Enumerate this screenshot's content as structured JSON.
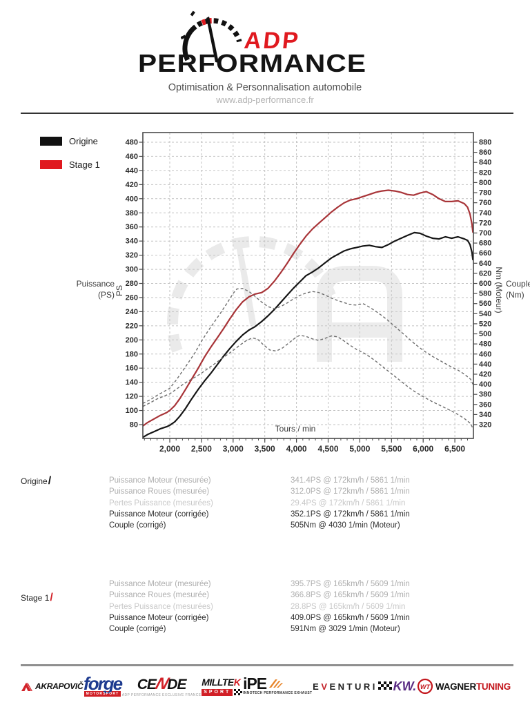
{
  "header": {
    "brand_top": "ADP",
    "brand_bottom": "PERFORMANCE",
    "tagline": "Optimisation & Personnalisation automobile",
    "website": "www.adp-performance.fr"
  },
  "legend": [
    {
      "label": "Origine",
      "color": "#111111"
    },
    {
      "label": "Stage 1",
      "color": "#e0191f"
    }
  ],
  "chart_data": {
    "type": "line",
    "xlabel": "Tours / min",
    "x_axis": {
      "min": 1575,
      "max": 6785,
      "ticks": [
        2000,
        2500,
        3000,
        3500,
        4000,
        4500,
        5000,
        5500,
        6000,
        6500
      ],
      "tick_labels": [
        "2,000",
        "2,500",
        "3,000",
        "3,500",
        "4,000",
        "4,500",
        "5,000",
        "5,500",
        "6,000",
        "6,500"
      ]
    },
    "left_axis": {
      "title_lines": [
        "Puissance",
        "(PS)"
      ],
      "axis_text": "PS",
      "min": 80,
      "max": 480,
      "step": 20,
      "ticks": [
        480,
        460,
        440,
        420,
        400,
        380,
        360,
        340,
        320,
        300,
        280,
        260,
        240,
        220,
        200,
        180,
        160,
        140,
        120,
        100,
        80
      ]
    },
    "right_axis": {
      "title_lines": [
        "Couple",
        "(Nm)"
      ],
      "axis_text": "Nm (Moteur)",
      "min": 320,
      "max": 880,
      "step": 20,
      "ticks": [
        880,
        860,
        840,
        820,
        800,
        780,
        760,
        740,
        720,
        700,
        680,
        660,
        640,
        620,
        600,
        580,
        560,
        540,
        520,
        500,
        480,
        460,
        440,
        420,
        400,
        380,
        360,
        340,
        320
      ]
    },
    "grid": true,
    "legend_position": "top-left-outside",
    "series": [
      {
        "name": "Stage 1 Puissance (PS)",
        "axis": "left",
        "style": "solid",
        "color": "#a83438",
        "points": [
          [
            1575,
            78
          ],
          [
            1650,
            83
          ],
          [
            1750,
            88
          ],
          [
            1850,
            93
          ],
          [
            1950,
            97
          ],
          [
            2000,
            100
          ],
          [
            2080,
            107
          ],
          [
            2160,
            117
          ],
          [
            2250,
            130
          ],
          [
            2350,
            145
          ],
          [
            2450,
            160
          ],
          [
            2550,
            176
          ],
          [
            2650,
            190
          ],
          [
            2750,
            203
          ],
          [
            2850,
            216
          ],
          [
            2950,
            230
          ],
          [
            3050,
            243
          ],
          [
            3150,
            254
          ],
          [
            3250,
            261
          ],
          [
            3350,
            265
          ],
          [
            3450,
            267
          ],
          [
            3550,
            273
          ],
          [
            3650,
            283
          ],
          [
            3750,
            295
          ],
          [
            3850,
            308
          ],
          [
            3950,
            322
          ],
          [
            4050,
            335
          ],
          [
            4150,
            347
          ],
          [
            4250,
            357
          ],
          [
            4350,
            365
          ],
          [
            4450,
            373
          ],
          [
            4550,
            381
          ],
          [
            4650,
            388
          ],
          [
            4750,
            394
          ],
          [
            4850,
            398
          ],
          [
            4950,
            400
          ],
          [
            5050,
            403
          ],
          [
            5150,
            406
          ],
          [
            5250,
            409
          ],
          [
            5350,
            411
          ],
          [
            5450,
            412
          ],
          [
            5550,
            411
          ],
          [
            5650,
            409
          ],
          [
            5750,
            406
          ],
          [
            5850,
            405
          ],
          [
            5950,
            408
          ],
          [
            6050,
            410
          ],
          [
            6150,
            406
          ],
          [
            6250,
            400
          ],
          [
            6350,
            396
          ],
          [
            6450,
            396
          ],
          [
            6550,
            397
          ],
          [
            6650,
            393
          ],
          [
            6700,
            388
          ],
          [
            6740,
            378
          ],
          [
            6770,
            364
          ],
          [
            6785,
            352
          ]
        ]
      },
      {
        "name": "Origine Puissance (PS)",
        "axis": "left",
        "style": "solid",
        "color": "#151515",
        "points": [
          [
            1575,
            62
          ],
          [
            1650,
            66
          ],
          [
            1750,
            70
          ],
          [
            1850,
            74
          ],
          [
            1950,
            77
          ],
          [
            2000,
            79
          ],
          [
            2080,
            84
          ],
          [
            2160,
            92
          ],
          [
            2250,
            103
          ],
          [
            2350,
            117
          ],
          [
            2450,
            130
          ],
          [
            2550,
            142
          ],
          [
            2650,
            153
          ],
          [
            2750,
            165
          ],
          [
            2850,
            177
          ],
          [
            2950,
            188
          ],
          [
            3050,
            198
          ],
          [
            3150,
            207
          ],
          [
            3250,
            214
          ],
          [
            3350,
            219
          ],
          [
            3450,
            226
          ],
          [
            3550,
            234
          ],
          [
            3650,
            243
          ],
          [
            3750,
            253
          ],
          [
            3850,
            263
          ],
          [
            3950,
            273
          ],
          [
            4050,
            282
          ],
          [
            4150,
            291
          ],
          [
            4250,
            296
          ],
          [
            4350,
            302
          ],
          [
            4450,
            309
          ],
          [
            4550,
            316
          ],
          [
            4650,
            321
          ],
          [
            4750,
            326
          ],
          [
            4850,
            329
          ],
          [
            4950,
            331
          ],
          [
            5050,
            333
          ],
          [
            5150,
            334
          ],
          [
            5250,
            332
          ],
          [
            5350,
            331
          ],
          [
            5450,
            335
          ],
          [
            5550,
            340
          ],
          [
            5650,
            344
          ],
          [
            5750,
            348
          ],
          [
            5861,
            352
          ],
          [
            5950,
            351
          ],
          [
            6050,
            347
          ],
          [
            6150,
            344
          ],
          [
            6250,
            343
          ],
          [
            6350,
            346
          ],
          [
            6450,
            344
          ],
          [
            6550,
            346
          ],
          [
            6650,
            343
          ],
          [
            6700,
            341
          ],
          [
            6740,
            335
          ],
          [
            6770,
            324
          ],
          [
            6785,
            313
          ]
        ]
      },
      {
        "name": "Stage 1 Couple (Nm)",
        "axis": "right",
        "style": "dashed",
        "color": "#6e6e6e",
        "points": [
          [
            1575,
            362
          ],
          [
            1700,
            370
          ],
          [
            1800,
            378
          ],
          [
            1900,
            385
          ],
          [
            2000,
            392
          ],
          [
            2100,
            408
          ],
          [
            2200,
            426
          ],
          [
            2300,
            444
          ],
          [
            2400,
            463
          ],
          [
            2500,
            485
          ],
          [
            2600,
            505
          ],
          [
            2700,
            523
          ],
          [
            2800,
            541
          ],
          [
            2900,
            560
          ],
          [
            3000,
            580
          ],
          [
            3060,
            589
          ],
          [
            3150,
            590
          ],
          [
            3250,
            584
          ],
          [
            3350,
            574
          ],
          [
            3450,
            563
          ],
          [
            3550,
            554
          ],
          [
            3650,
            550
          ],
          [
            3750,
            554
          ],
          [
            3850,
            561
          ],
          [
            3950,
            569
          ],
          [
            4050,
            576
          ],
          [
            4150,
            581
          ],
          [
            4250,
            584
          ],
          [
            4350,
            582
          ],
          [
            4450,
            577
          ],
          [
            4550,
            571
          ],
          [
            4650,
            566
          ],
          [
            4750,
            562
          ],
          [
            4850,
            558
          ],
          [
            4950,
            557
          ],
          [
            5050,
            560
          ],
          [
            5150,
            553
          ],
          [
            5250,
            545
          ],
          [
            5350,
            536
          ],
          [
            5450,
            526
          ],
          [
            5550,
            515
          ],
          [
            5650,
            504
          ],
          [
            5750,
            493
          ],
          [
            5850,
            482
          ],
          [
            5950,
            472
          ],
          [
            6050,
            463
          ],
          [
            6150,
            455
          ],
          [
            6250,
            448
          ],
          [
            6350,
            441
          ],
          [
            6450,
            434
          ],
          [
            6550,
            428
          ],
          [
            6650,
            420
          ],
          [
            6750,
            410
          ],
          [
            6785,
            400
          ]
        ]
      },
      {
        "name": "Origine Couple (Nm)",
        "axis": "right",
        "style": "dashed",
        "color": "#6e6e6e",
        "points": [
          [
            1575,
            356
          ],
          [
            1700,
            364
          ],
          [
            1800,
            371
          ],
          [
            1900,
            376
          ],
          [
            2000,
            381
          ],
          [
            2100,
            390
          ],
          [
            2200,
            399
          ],
          [
            2300,
            407
          ],
          [
            2400,
            414
          ],
          [
            2500,
            422
          ],
          [
            2600,
            431
          ],
          [
            2700,
            440
          ],
          [
            2800,
            449
          ],
          [
            2900,
            458
          ],
          [
            3000,
            467
          ],
          [
            3100,
            477
          ],
          [
            3200,
            486
          ],
          [
            3300,
            492
          ],
          [
            3380,
            490
          ],
          [
            3480,
            478
          ],
          [
            3580,
            468
          ],
          [
            3680,
            466
          ],
          [
            3780,
            472
          ],
          [
            3880,
            482
          ],
          [
            3980,
            492
          ],
          [
            4050,
            497
          ],
          [
            4150,
            495
          ],
          [
            4250,
            490
          ],
          [
            4350,
            487
          ],
          [
            4450,
            491
          ],
          [
            4550,
            496
          ],
          [
            4650,
            494
          ],
          [
            4750,
            486
          ],
          [
            4850,
            477
          ],
          [
            4950,
            469
          ],
          [
            5050,
            463
          ],
          [
            5150,
            455
          ],
          [
            5250,
            446
          ],
          [
            5350,
            436
          ],
          [
            5450,
            426
          ],
          [
            5550,
            416
          ],
          [
            5650,
            406
          ],
          [
            5750,
            396
          ],
          [
            5850,
            387
          ],
          [
            5950,
            379
          ],
          [
            6050,
            372
          ],
          [
            6150,
            365
          ],
          [
            6250,
            359
          ],
          [
            6350,
            353
          ],
          [
            6450,
            347
          ],
          [
            6550,
            340
          ],
          [
            6650,
            332
          ],
          [
            6750,
            322
          ],
          [
            6785,
            312
          ]
        ]
      }
    ]
  },
  "results": [
    {
      "stage": "Origine",
      "slash_color": "#111111",
      "rows": [
        {
          "label": "Puissance Moteur (mesurée)",
          "value": "341.4PS @ 172km/h / 5861 1/min"
        },
        {
          "label": "Puissance Roues (mesurée)",
          "value": "312.0PS @ 172km/h / 5861 1/min"
        },
        {
          "label": "Pertes Puissance (mesurées)",
          "value": "29.4PS @ 172km/h / 5861 1/min"
        },
        {
          "label": "Puissance Moteur (corrigée)",
          "value": "352.1PS @ 172km/h / 5861 1/min"
        },
        {
          "label": "Couple (corrigé)",
          "value": "505Nm @ 4030 1/min (Moteur)"
        }
      ]
    },
    {
      "stage": "Stage 1",
      "slash_color": "#d21f26",
      "rows": [
        {
          "label": "Puissance Moteur (mesurée)",
          "value": "395.7PS @ 165km/h / 5609 1/min"
        },
        {
          "label": "Puissance Roues (mesurée)",
          "value": "366.8PS @ 165km/h / 5609 1/min"
        },
        {
          "label": "Pertes Puissance (mesurées)",
          "value": "28.8PS @ 165km/h / 5609 1/min"
        },
        {
          "label": "Puissance Moteur (corrigée)",
          "value": "409.0PS @ 165km/h / 5609 1/min"
        },
        {
          "label": "Couple (corrigé)",
          "value": "591Nm @ 3029 1/min (Moteur)"
        }
      ]
    }
  ],
  "footer": {
    "brands": [
      {
        "name": "Akrapovič",
        "text": "AKRAPOVIČ"
      },
      {
        "name": "Forge Motorsport",
        "text": "forge",
        "sub": "MOTORSPORT"
      },
      {
        "name": "Cende",
        "part1": "CE",
        "part2": "N",
        "part3": "DE",
        "sub": "ADP PERFORMANCE EXCLUSIVE FRANCE"
      },
      {
        "name": "Milltek Sport",
        "part1": "MILLTE",
        "part2": "K",
        "sub": "SPORT"
      },
      {
        "name": "iPE",
        "text": "iPE",
        "sub": "INNOTECH PERFORMANCE EXHAUST"
      },
      {
        "name": "Eventuri",
        "part1": "E",
        "part2": "V",
        "part3": "ENTURI"
      },
      {
        "name": "KW",
        "text": "KW."
      },
      {
        "name": "Wagner Tuning",
        "part1": "WAGNER",
        "part2": "TUNING"
      }
    ]
  }
}
